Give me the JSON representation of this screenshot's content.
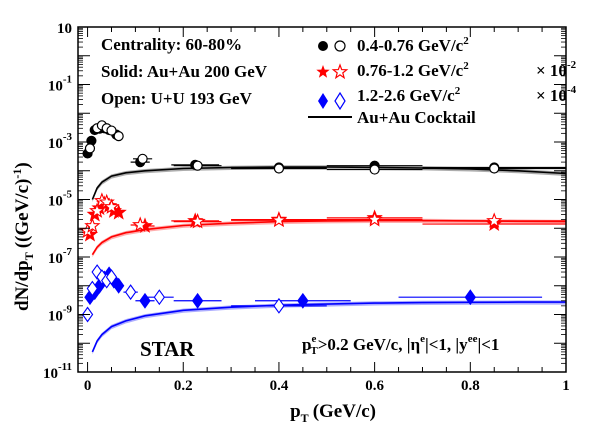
{
  "chart_data": {
    "type": "scatter",
    "xlabel_main": "p",
    "xlabel_sub": "T",
    "xlabel_unit": "(GeV/c)",
    "ylabel_main": "dN/dp",
    "ylabel_sub": "T",
    "ylabel_unit": "((GeV/c)",
    "ylabel_unit_sup": "-1",
    "ylabel_close": ")",
    "xlim": [
      -0.02,
      1.0
    ],
    "ylim_log10": [
      -11,
      1
    ],
    "y_scale": "log",
    "x_ticks": [
      {
        "value": 0,
        "label": "0"
      },
      {
        "value": 0.2,
        "label": "0.2"
      },
      {
        "value": 0.4,
        "label": "0.4"
      },
      {
        "value": 0.6,
        "label": "0.6"
      },
      {
        "value": 0.8,
        "label": "0.8"
      },
      {
        "value": 1.0,
        "label": "1"
      }
    ],
    "y_ticks": [
      {
        "exp": 1,
        "base": "10",
        "sup": ""
      },
      {
        "exp": -1,
        "base": "10",
        "sup": "-1"
      },
      {
        "exp": -3,
        "base": "10",
        "sup": "-3"
      },
      {
        "exp": -5,
        "base": "10",
        "sup": "-5"
      },
      {
        "exp": -7,
        "base": "10",
        "sup": "-7"
      },
      {
        "exp": -9,
        "base": "10",
        "sup": "-9"
      },
      {
        "exp": -11,
        "base": "10",
        "sup": "-11"
      }
    ],
    "info_text": [
      "Centrality: 60-80%",
      "Solid: Au+Au 200 GeV",
      "Open: U+U 193 GeV"
    ],
    "experiment_label": "STAR",
    "cuts_label": {
      "p": "p",
      "p_sup": "e",
      "p_sub": "T",
      "after_p": ">0.2 GeV/c, |η",
      "eta_sup": "e",
      "mid": "|<1, |y",
      "y_sup": "ee",
      "end": "|<1"
    },
    "legend": [
      {
        "text": "0.4-0.76 GeV/c",
        "sup": "2",
        "scale_text": "",
        "scale_sup": "",
        "color": "#000000",
        "marker": "circle"
      },
      {
        "text": "0.76-1.2  GeV/c",
        "sup": "2",
        "scale_text": "× 10",
        "scale_sup": "-2",
        "color": "#ff0000",
        "marker": "star"
      },
      {
        "text": "1.2-2.6  GeV/c",
        "sup": "2",
        "scale_text": "× 10",
        "scale_sup": "-4",
        "color": "#0000ff",
        "marker": "diamond"
      },
      {
        "text": "Au+Au Cocktail",
        "sup": "",
        "scale_text": "",
        "scale_sup": "",
        "color": "#000000",
        "marker": "line"
      }
    ],
    "series": [
      {
        "name": "0.4-0.76 GeV/c2 Au+Au 200 GeV",
        "color": "#000000",
        "marker": "circle",
        "filled": true,
        "points": [
          {
            "x": 0.0,
            "y": 0.0004,
            "xerr": 0.002
          },
          {
            "x": 0.008,
            "y": 0.0011,
            "xerr": 0.004
          },
          {
            "x": 0.015,
            "y": 0.0026,
            "xerr": 0.004
          },
          {
            "x": 0.025,
            "y": 0.0029,
            "xerr": 0.005
          },
          {
            "x": 0.035,
            "y": 0.003,
            "xerr": 0.005
          },
          {
            "x": 0.045,
            "y": 0.0026,
            "xerr": 0.005
          },
          {
            "x": 0.06,
            "y": 0.0018,
            "xerr": 0.005
          },
          {
            "x": 0.11,
            "y": 0.0002,
            "xerr": 0.02
          },
          {
            "x": 0.225,
            "y": 0.00016,
            "xerr": 0.05
          },
          {
            "x": 0.4,
            "y": 0.00013,
            "xerr": 0.1
          },
          {
            "x": 0.6,
            "y": 0.00015,
            "xerr": 0.1
          },
          {
            "x": 0.85,
            "y": 0.00013,
            "xerr": 0.15
          }
        ]
      },
      {
        "name": "0.4-0.76 GeV/c2 U+U 193 GeV",
        "color": "#000000",
        "marker": "circle",
        "filled": false,
        "points": [
          {
            "x": 0.005,
            "y": 0.0006,
            "xerr": 0.003
          },
          {
            "x": 0.02,
            "y": 0.003,
            "xerr": 0.005
          },
          {
            "x": 0.03,
            "y": 0.0038,
            "xerr": 0.005
          },
          {
            "x": 0.04,
            "y": 0.003,
            "xerr": 0.005
          },
          {
            "x": 0.05,
            "y": 0.0025,
            "xerr": 0.005
          },
          {
            "x": 0.065,
            "y": 0.0016,
            "xerr": 0.006
          },
          {
            "x": 0.115,
            "y": 0.00026,
            "xerr": 0.02
          },
          {
            "x": 0.23,
            "y": 0.00015,
            "xerr": 0.05
          },
          {
            "x": 0.4,
            "y": 0.00012,
            "xerr": 0.1
          },
          {
            "x": 0.6,
            "y": 0.00011,
            "xerr": 0.1
          },
          {
            "x": 0.85,
            "y": 0.00012,
            "xerr": 0.15
          }
        ]
      },
      {
        "name": "0.76-1.2 GeV/c2 x10-2 Au+Au 200 GeV",
        "color": "#ff0000",
        "marker": "star",
        "filled": true,
        "points": [
          {
            "x": 0.005,
            "y": 6e-07,
            "xerr": 0.003
          },
          {
            "x": 0.015,
            "y": 3e-06,
            "xerr": 0.004
          },
          {
            "x": 0.025,
            "y": 5e-06,
            "xerr": 0.004
          },
          {
            "x": 0.035,
            "y": 7e-06,
            "xerr": 0.005
          },
          {
            "x": 0.045,
            "y": 6e-06,
            "xerr": 0.005
          },
          {
            "x": 0.055,
            "y": 4e-06,
            "xerr": 0.005
          },
          {
            "x": 0.065,
            "y": 3.5e-06,
            "xerr": 0.005
          },
          {
            "x": 0.12,
            "y": 1.2e-06,
            "xerr": 0.02
          },
          {
            "x": 0.225,
            "y": 1.8e-06,
            "xerr": 0.05
          },
          {
            "x": 0.4,
            "y": 2e-06,
            "xerr": 0.1
          },
          {
            "x": 0.6,
            "y": 2.3e-06,
            "xerr": 0.1
          },
          {
            "x": 0.85,
            "y": 1.4e-06,
            "xerr": 0.15
          }
        ]
      },
      {
        "name": "0.76-1.2 GeV/c2 x10-2 U+U 193 GeV",
        "color": "#ff0000",
        "marker": "star",
        "filled": false,
        "points": [
          {
            "x": 0.0,
            "y": 8e-07,
            "xerr": 0.002
          },
          {
            "x": 0.01,
            "y": 1.2e-06,
            "xerr": 0.003
          },
          {
            "x": 0.02,
            "y": 4e-06,
            "xerr": 0.004
          },
          {
            "x": 0.03,
            "y": 9e-06,
            "xerr": 0.005
          },
          {
            "x": 0.04,
            "y": 8e-06,
            "xerr": 0.005
          },
          {
            "x": 0.05,
            "y": 5.5e-06,
            "xerr": 0.005
          },
          {
            "x": 0.11,
            "y": 1.3e-06,
            "xerr": 0.02
          },
          {
            "x": 0.23,
            "y": 1.7e-06,
            "xerr": 0.05
          },
          {
            "x": 0.4,
            "y": 1.9e-06,
            "xerr": 0.1
          },
          {
            "x": 0.6,
            "y": 2e-06,
            "xerr": 0.1
          },
          {
            "x": 0.85,
            "y": 1.8e-06,
            "xerr": 0.15
          }
        ]
      },
      {
        "name": "1.2-2.6 GeV/c2 x10-4 Au+Au 200 GeV",
        "color": "#0000ff",
        "marker": "diamond",
        "filled": true,
        "points": [
          {
            "x": 0.005,
            "y": 4e-09,
            "xerr": 0.003
          },
          {
            "x": 0.015,
            "y": 6e-09,
            "xerr": 0.004
          },
          {
            "x": 0.025,
            "y": 1e-08,
            "xerr": 0.004
          },
          {
            "x": 0.035,
            "y": 1.8e-08,
            "xerr": 0.005
          },
          {
            "x": 0.045,
            "y": 2.5e-08,
            "xerr": 0.005
          },
          {
            "x": 0.055,
            "y": 1.5e-08,
            "xerr": 0.005
          },
          {
            "x": 0.065,
            "y": 1e-08,
            "xerr": 0.005
          },
          {
            "x": 0.12,
            "y": 3e-09,
            "xerr": 0.02
          },
          {
            "x": 0.23,
            "y": 3e-09,
            "xerr": 0.05
          },
          {
            "x": 0.45,
            "y": 3e-09,
            "xerr": 0.1
          },
          {
            "x": 0.8,
            "y": 4e-09,
            "xerr": 0.15
          }
        ]
      },
      {
        "name": "1.2-2.6 GeV/c2 x10-4 U+U 193 GeV",
        "color": "#0000ff",
        "marker": "diamond",
        "filled": false,
        "points": [
          {
            "x": 0.0,
            "y": 1e-09,
            "xerr": 0.002
          },
          {
            "x": 0.01,
            "y": 8e-09,
            "xerr": 0.003
          },
          {
            "x": 0.02,
            "y": 3e-08,
            "xerr": 0.004
          },
          {
            "x": 0.03,
            "y": 2e-08,
            "xerr": 0.005
          },
          {
            "x": 0.04,
            "y": 1.5e-08,
            "xerr": 0.005
          },
          {
            "x": 0.05,
            "y": 2e-08,
            "xerr": 0.005
          },
          {
            "x": 0.09,
            "y": 6e-09,
            "xerr": 0.015
          },
          {
            "x": 0.15,
            "y": 4e-09,
            "xerr": 0.03
          },
          {
            "x": 0.4,
            "y": 2e-09,
            "xerr": 0.1
          }
        ]
      }
    ],
    "cocktails": [
      {
        "name": "Au+Au Cocktail 0.4-0.76",
        "color": "#000000",
        "band": "#999999",
        "x": [
          0.01,
          0.02,
          0.03,
          0.05,
          0.08,
          0.12,
          0.2,
          0.3,
          0.4,
          0.5,
          0.6,
          0.7,
          0.8,
          0.9,
          1.0
        ],
        "y": [
          1e-05,
          2.5e-05,
          4e-05,
          6.5e-05,
          8.5e-05,
          0.0001,
          0.00012,
          0.00013,
          0.000135,
          0.000135,
          0.00013,
          0.000125,
          0.000115,
          0.0001,
          8e-05
        ]
      },
      {
        "name": "Au+Au Cocktail 0.76-1.2",
        "color": "#ff0000",
        "band": "#ff9999",
        "x": [
          0.01,
          0.02,
          0.03,
          0.05,
          0.08,
          0.12,
          0.2,
          0.3,
          0.4,
          0.5,
          0.6,
          0.7,
          0.8,
          0.9,
          1.0
        ],
        "y": [
          1.2e-07,
          2.2e-07,
          3.2e-07,
          5e-07,
          7e-07,
          9e-07,
          1.25e-06,
          1.5e-06,
          1.7e-06,
          1.8e-06,
          1.85e-06,
          1.85e-06,
          1.8e-06,
          1.75e-06,
          1.7e-06
        ]
      },
      {
        "name": "Au+Au Cocktail 1.2-2.6",
        "color": "#0000ff",
        "band": "#9999ff",
        "x": [
          0.01,
          0.02,
          0.03,
          0.05,
          0.08,
          0.12,
          0.2,
          0.3,
          0.4,
          0.5,
          0.6,
          0.7,
          0.8,
          0.9,
          1.0
        ],
        "y": [
          5e-11,
          1.2e-10,
          2e-10,
          3.8e-10,
          6e-10,
          9e-10,
          1.4e-09,
          1.8e-09,
          2.1e-09,
          2.3e-09,
          2.5e-09,
          2.6e-09,
          2.65e-09,
          2.7e-09,
          2.7e-09
        ]
      }
    ]
  }
}
